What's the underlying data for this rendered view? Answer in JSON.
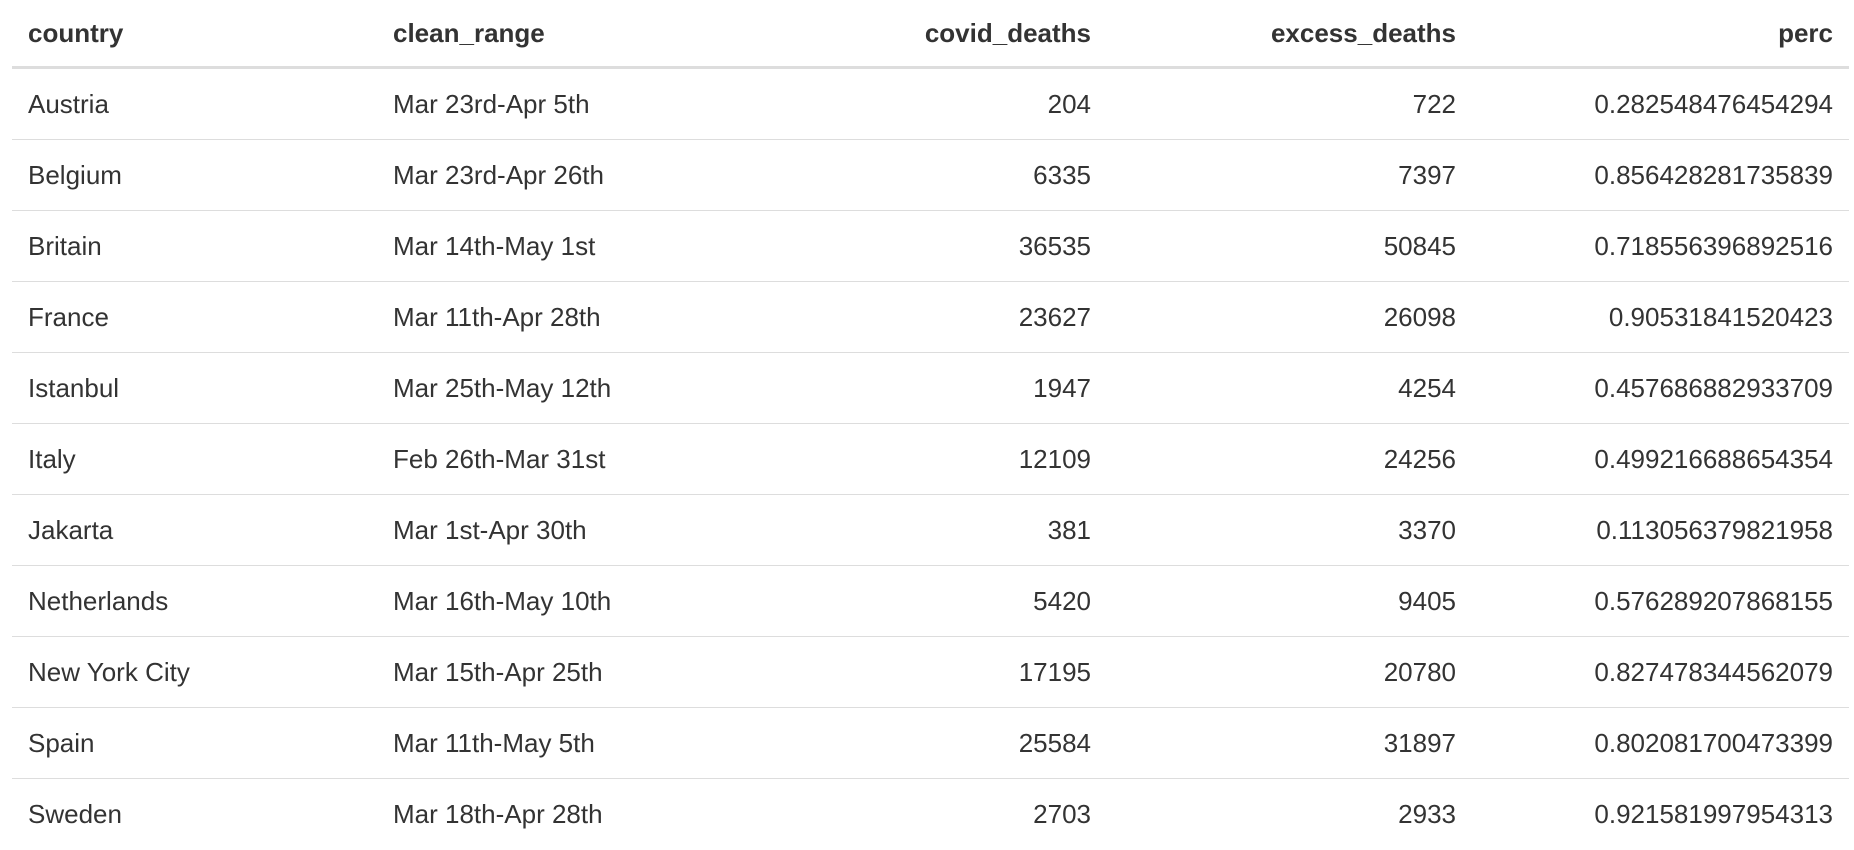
{
  "table": {
    "columns": [
      {
        "label": "country",
        "align": "left"
      },
      {
        "label": "clean_range",
        "align": "left"
      },
      {
        "label": "covid_deaths",
        "align": "right"
      },
      {
        "label": "excess_deaths",
        "align": "right"
      },
      {
        "label": "perc",
        "align": "right"
      }
    ],
    "rows": [
      [
        "Austria",
        "Mar 23rd-Apr 5th",
        "204",
        "722",
        "0.282548476454294"
      ],
      [
        "Belgium",
        "Mar 23rd-Apr 26th",
        "6335",
        "7397",
        "0.856428281735839"
      ],
      [
        "Britain",
        "Mar 14th-May 1st",
        "36535",
        "50845",
        "0.718556396892516"
      ],
      [
        "France",
        "Mar 11th-Apr 28th",
        "23627",
        "26098",
        "0.90531841520423"
      ],
      [
        "Istanbul",
        "Mar 25th-May 12th",
        "1947",
        "4254",
        "0.457686882933709"
      ],
      [
        "Italy",
        "Feb 26th-Mar 31st",
        "12109",
        "24256",
        "0.499216688654354"
      ],
      [
        "Jakarta",
        "Mar 1st-Apr 30th",
        "381",
        "3370",
        "0.113056379821958"
      ],
      [
        "Netherlands",
        "Mar 16th-May 10th",
        "5420",
        "9405",
        "0.576289207868155"
      ],
      [
        "New York City",
        "Mar 15th-Apr 25th",
        "17195",
        "20780",
        "0.827478344562079"
      ],
      [
        "Spain",
        "Mar 11th-May 5th",
        "25584",
        "31897",
        "0.802081700473399"
      ],
      [
        "Sweden",
        "Mar 18th-Apr 28th",
        "2703",
        "2933",
        "0.921581997954313"
      ]
    ]
  },
  "colors": {
    "text": "#333333",
    "header_rule": "#dddddd",
    "row_rule": "#dddddd",
    "background": "#ffffff"
  }
}
